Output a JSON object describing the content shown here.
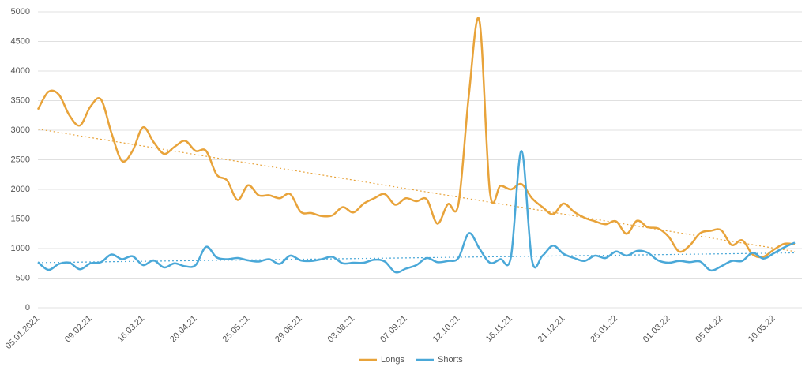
{
  "chart_data": {
    "type": "line",
    "categories": [
      "05.01.2021",
      null,
      null,
      null,
      null,
      "09.02.21",
      null,
      null,
      null,
      null,
      "16.03.21",
      null,
      null,
      null,
      null,
      "20.04.21",
      null,
      null,
      null,
      null,
      "25.05.21",
      null,
      null,
      null,
      null,
      "29.06.21",
      null,
      null,
      null,
      null,
      "03.08.21",
      null,
      null,
      null,
      null,
      "07.09.21",
      null,
      null,
      null,
      null,
      "12.10.21",
      null,
      null,
      null,
      null,
      "16.11.21",
      null,
      null,
      null,
      null,
      "21.12.21",
      null,
      null,
      null,
      null,
      "25.01.22",
      null,
      null,
      null,
      null,
      "01.03.22",
      null,
      null,
      null,
      null,
      "05.04.22",
      null,
      null,
      null,
      null,
      "10.05.22",
      null,
      null
    ],
    "series": [
      {
        "name": "Longs",
        "color": "#e8a33a",
        "values": [
          3350,
          3650,
          3600,
          3250,
          3080,
          3400,
          3520,
          2950,
          2480,
          2650,
          3050,
          2800,
          2600,
          2720,
          2820,
          2650,
          2650,
          2250,
          2150,
          1820,
          2070,
          1900,
          1900,
          1850,
          1920,
          1620,
          1600,
          1550,
          1560,
          1700,
          1610,
          1760,
          1850,
          1920,
          1740,
          1850,
          1800,
          1830,
          1420,
          1750,
          1750,
          3600,
          4850,
          1950,
          2060,
          2000,
          2090,
          1850,
          1700,
          1580,
          1760,
          1620,
          1520,
          1460,
          1410,
          1460,
          1250,
          1470,
          1360,
          1340,
          1200,
          950,
          1050,
          1260,
          1300,
          1310,
          1060,
          1140,
          900,
          860,
          980,
          1080,
          1070
        ]
      },
      {
        "name": "Shorts",
        "color": "#4aa8d8",
        "values": [
          770,
          640,
          740,
          760,
          650,
          750,
          770,
          900,
          820,
          870,
          720,
          800,
          680,
          750,
          700,
          720,
          1030,
          850,
          820,
          840,
          800,
          780,
          820,
          740,
          880,
          800,
          790,
          820,
          860,
          750,
          760,
          760,
          810,
          780,
          600,
          660,
          720,
          840,
          770,
          790,
          840,
          1260,
          1000,
          760,
          820,
          860,
          2650,
          800,
          880,
          1050,
          910,
          840,
          790,
          880,
          840,
          950,
          880,
          960,
          930,
          800,
          760,
          790,
          770,
          780,
          630,
          700,
          790,
          790,
          930,
          830,
          920,
          1020,
          1100
        ]
      }
    ],
    "ylim": [
      0,
      5000
    ],
    "yticks": [
      0,
      500,
      1000,
      1500,
      2000,
      2500,
      3000,
      3500,
      4000,
      4500,
      5000
    ],
    "grid": true,
    "trendline": true,
    "legend": "bottom"
  }
}
